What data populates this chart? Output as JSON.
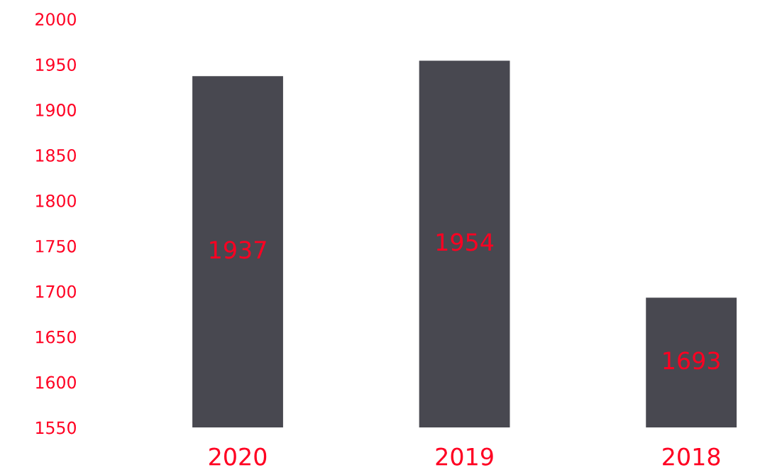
{
  "chart_data": {
    "type": "bar",
    "categories": [
      "2020",
      "2019",
      "2018"
    ],
    "values": [
      1937,
      1954,
      1693
    ],
    "color": "#484850",
    "ylim": [
      1550,
      2000
    ],
    "yticks": [
      1550,
      1600,
      1650,
      1700,
      1750,
      1800,
      1850,
      1900,
      1950,
      2000
    ],
    "data_labels": true,
    "grid": false
  }
}
